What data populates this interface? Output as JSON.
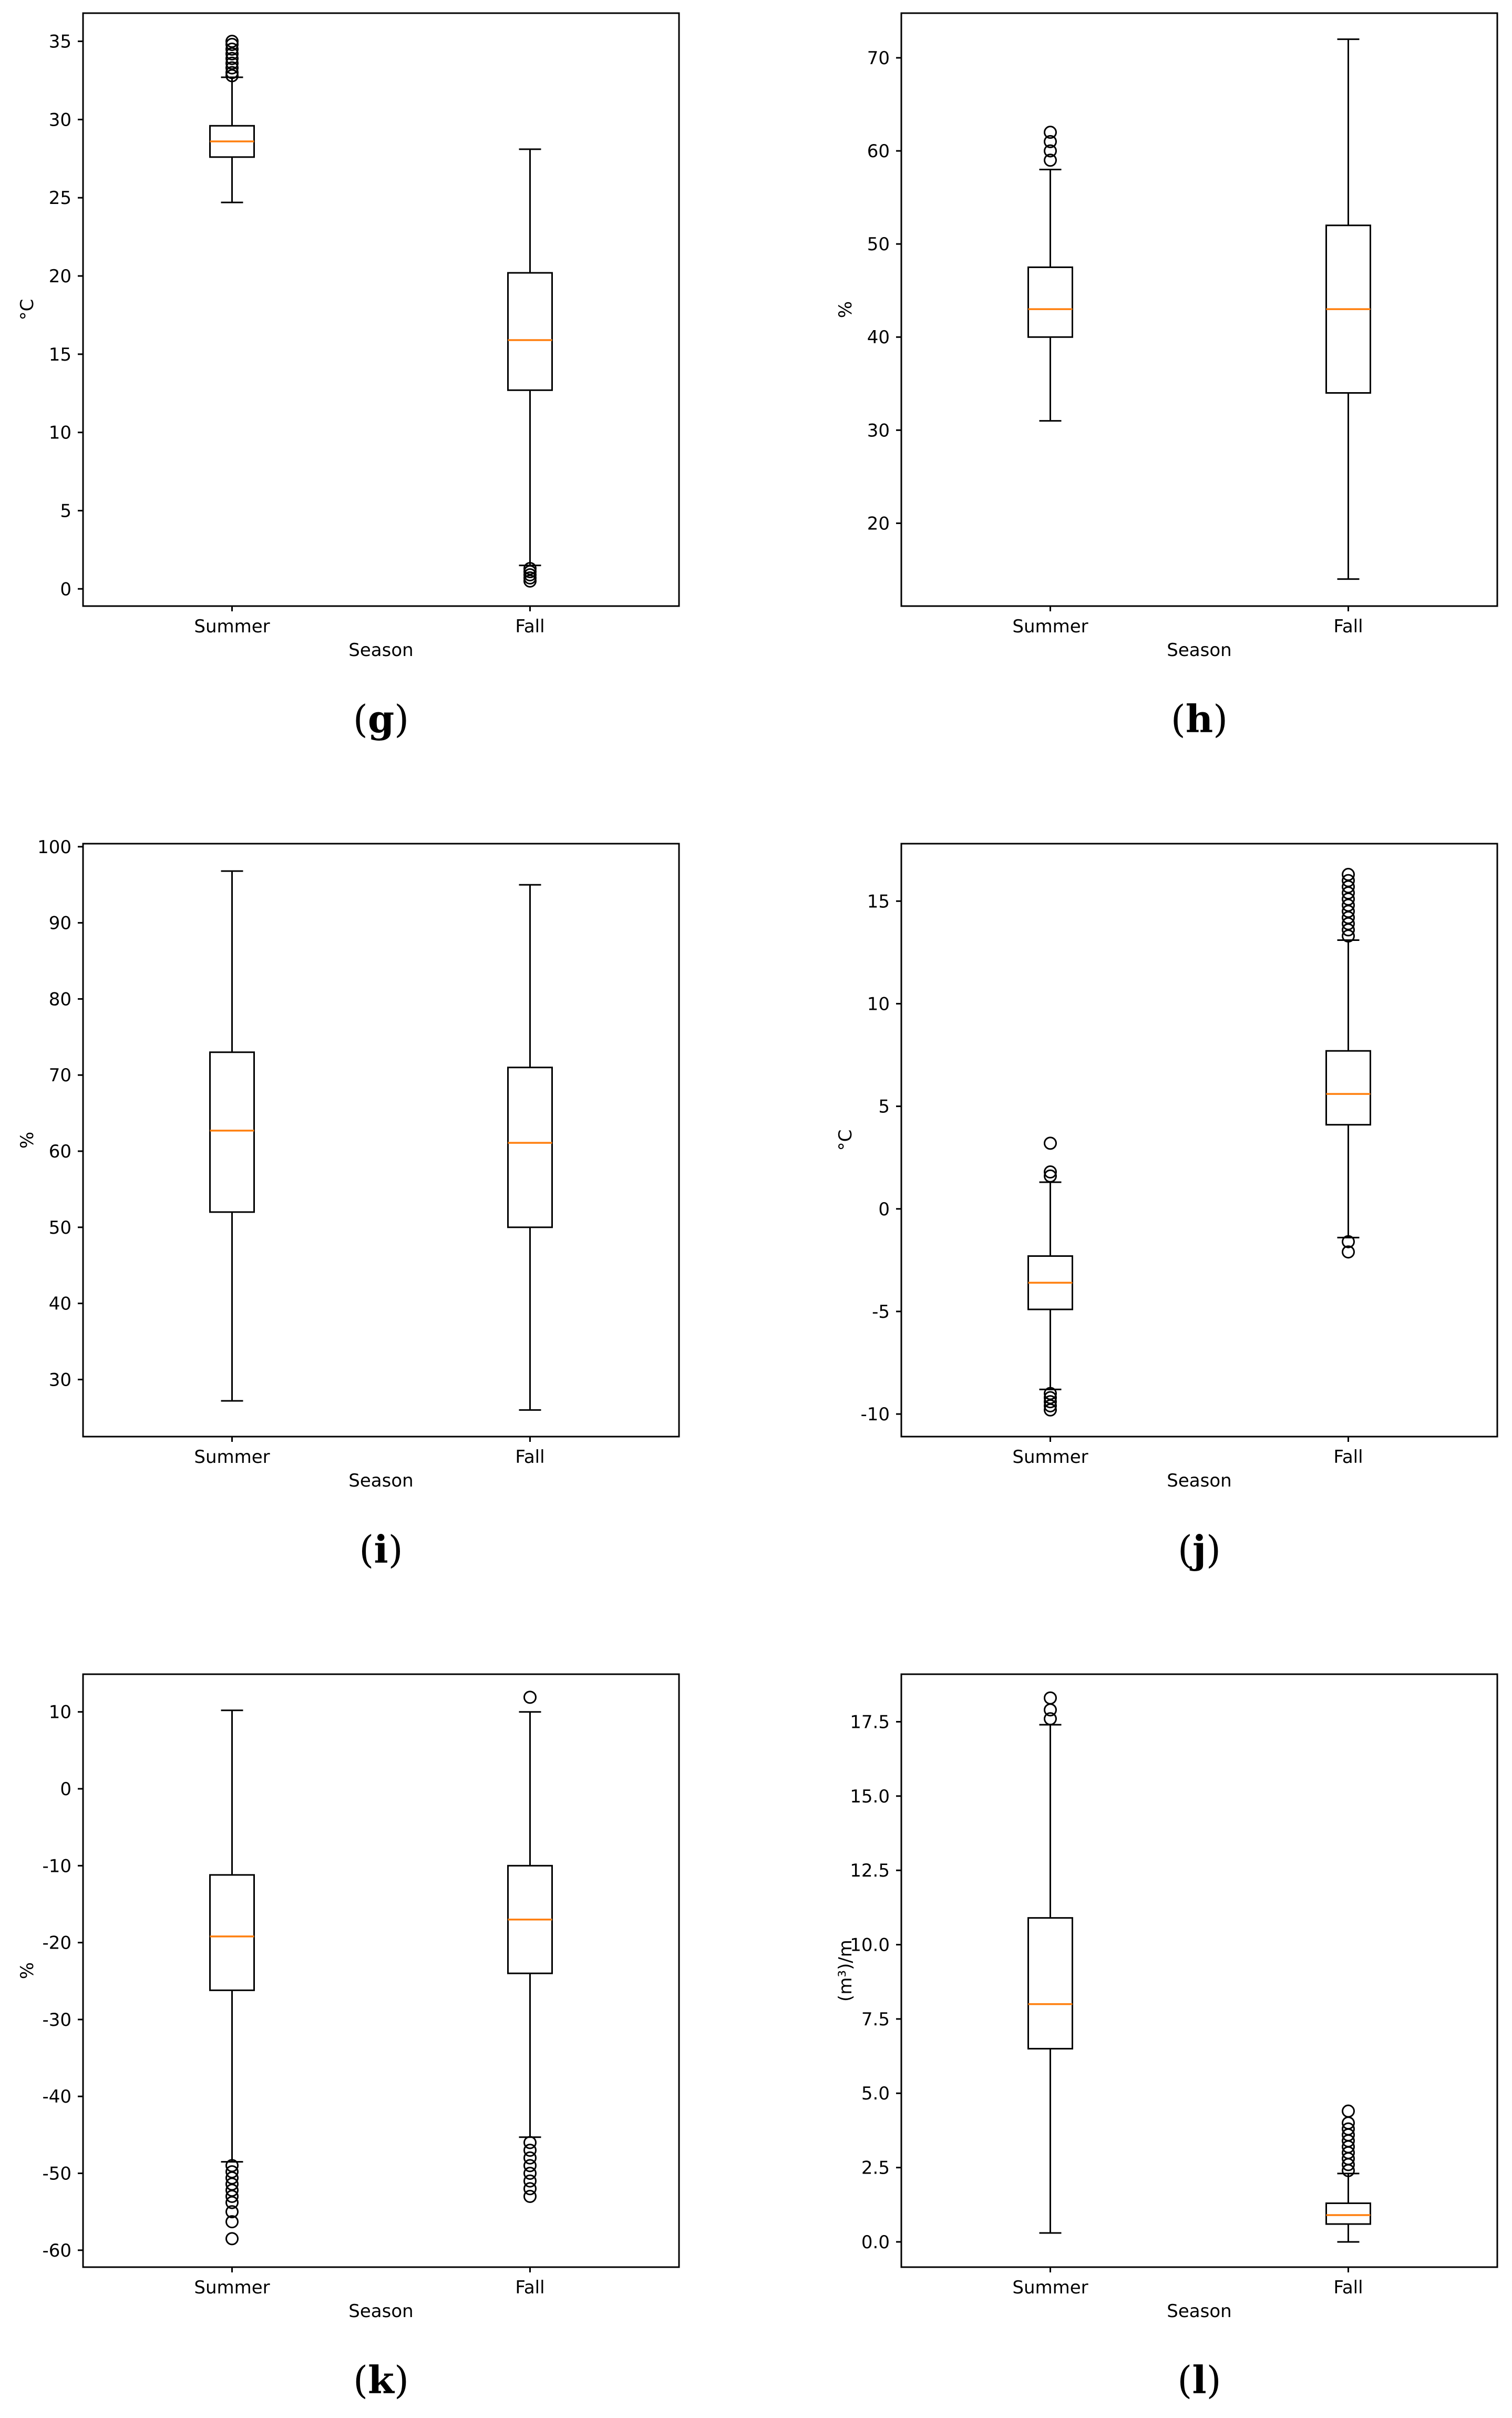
{
  "colors": {
    "box": "#000000",
    "median": "#ff7f0e",
    "background": "#ffffff"
  },
  "chart_data": [
    {
      "type": "boxplot",
      "caption": "g",
      "title": "",
      "xlabel": "Season",
      "ylabel": "°C",
      "categories": [
        "Summer",
        "Fall"
      ],
      "ylim": [
        -1.1,
        36.8
      ],
      "yticks": [
        0,
        5,
        10,
        15,
        20,
        25,
        30,
        35
      ],
      "boxes": [
        {
          "whislo": 24.7,
          "q1": 27.6,
          "med": 28.6,
          "q3": 29.6,
          "whishi": 32.7,
          "fliers": [
            32.8,
            33.0,
            33.3,
            33.6,
            33.9,
            34.2,
            34.5,
            34.8,
            35.0
          ]
        },
        {
          "whislo": 1.5,
          "q1": 12.7,
          "med": 15.9,
          "q3": 20.2,
          "whishi": 28.1,
          "fliers": [
            0.5,
            0.7,
            0.9,
            1.1,
            1.3
          ]
        }
      ]
    },
    {
      "type": "boxplot",
      "caption": "h",
      "title": "",
      "xlabel": "Season",
      "ylabel": "%",
      "categories": [
        "Summer",
        "Fall"
      ],
      "ylim": [
        11.1,
        74.8
      ],
      "yticks": [
        20,
        30,
        40,
        50,
        60,
        70
      ],
      "boxes": [
        {
          "whislo": 31,
          "q1": 40,
          "med": 43,
          "q3": 47.5,
          "whishi": 58,
          "fliers": [
            59,
            60,
            61,
            62
          ]
        },
        {
          "whislo": 14,
          "q1": 34,
          "med": 43,
          "q3": 52,
          "whishi": 72,
          "fliers": []
        }
      ]
    },
    {
      "type": "boxplot",
      "caption": "i",
      "title": "",
      "xlabel": "Season",
      "ylabel": "%",
      "categories": [
        "Summer",
        "Fall"
      ],
      "ylim": [
        22.5,
        100.4
      ],
      "yticks": [
        30,
        40,
        50,
        60,
        70,
        80,
        90,
        100
      ],
      "boxes": [
        {
          "whislo": 27.2,
          "q1": 52,
          "med": 62.7,
          "q3": 73,
          "whishi": 96.8,
          "fliers": []
        },
        {
          "whislo": 26.0,
          "q1": 50,
          "med": 61.1,
          "q3": 71,
          "whishi": 95.0,
          "fliers": []
        }
      ]
    },
    {
      "type": "boxplot",
      "caption": "j",
      "title": "",
      "xlabel": "Season",
      "ylabel": "°C",
      "categories": [
        "Summer",
        "Fall"
      ],
      "ylim": [
        -11.1,
        17.8
      ],
      "yticks": [
        -10,
        -5,
        0,
        5,
        10,
        15
      ],
      "boxes": [
        {
          "whislo": -8.8,
          "q1": -4.9,
          "med": -3.6,
          "q3": -2.3,
          "whishi": 1.3,
          "fliers": [
            1.6,
            1.8,
            3.2,
            -9.0,
            -9.2,
            -9.4,
            -9.6,
            -9.8
          ]
        },
        {
          "whislo": -1.4,
          "q1": 4.1,
          "med": 5.6,
          "q3": 7.7,
          "whishi": 13.1,
          "fliers": [
            13.3,
            13.6,
            13.9,
            14.2,
            14.5,
            14.8,
            15.1,
            15.4,
            15.7,
            16.0,
            16.3,
            -1.6,
            -2.1
          ]
        }
      ]
    },
    {
      "type": "boxplot",
      "caption": "k",
      "title": "",
      "xlabel": "Season",
      "ylabel": "%",
      "categories": [
        "Summer",
        "Fall"
      ],
      "ylim": [
        -62.2,
        14.9
      ],
      "yticks": [
        -60,
        -50,
        -40,
        -30,
        -20,
        -10,
        0,
        10
      ],
      "boxes": [
        {
          "whislo": -48.5,
          "q1": -26.2,
          "med": -19.2,
          "q3": -11.2,
          "whishi": 10.2,
          "fliers": [
            -49.0,
            -49.8,
            -50.6,
            -51.4,
            -52.2,
            -53.0,
            -53.8,
            -55.0,
            -56.3,
            -58.5
          ]
        },
        {
          "whislo": -45.3,
          "q1": -24.0,
          "med": -17.0,
          "q3": -10.0,
          "whishi": 10.0,
          "fliers": [
            11.9,
            -46.0,
            -47.0,
            -48.0,
            -49.0,
            -50.0,
            -51.0,
            -52.0,
            -53.0
          ]
        }
      ]
    },
    {
      "type": "boxplot",
      "caption": "l",
      "title": "",
      "xlabel": "Season",
      "ylabel": "(m³)/m",
      "categories": [
        "Summer",
        "Fall"
      ],
      "ylim": [
        -0.85,
        19.1
      ],
      "yticks": [
        "0.0",
        "2.5",
        "5.0",
        "7.5",
        "10.0",
        "12.5",
        "15.0",
        "17.5"
      ],
      "boxes": [
        {
          "whislo": 0.3,
          "q1": 6.5,
          "med": 8.0,
          "q3": 10.9,
          "whishi": 17.4,
          "fliers": [
            17.6,
            17.9,
            18.3
          ]
        },
        {
          "whislo": 0.0,
          "q1": 0.6,
          "med": 0.9,
          "q3": 1.3,
          "whishi": 2.3,
          "fliers": [
            2.4,
            2.6,
            2.8,
            3.0,
            3.2,
            3.4,
            3.6,
            3.8,
            4.0,
            4.4
          ]
        }
      ]
    }
  ]
}
